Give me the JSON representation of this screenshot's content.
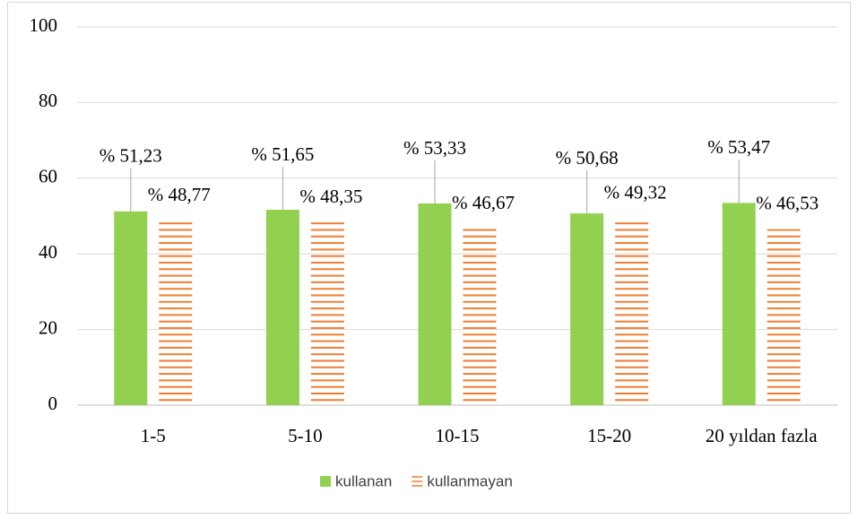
{
  "chart_data": {
    "type": "bar",
    "categories": [
      "1-5",
      "5-10",
      "10-15",
      "15-20",
      "20 yıldan fazla"
    ],
    "series": [
      {
        "name": "kullanan",
        "color": "#92d050",
        "fill": "solid",
        "values": [
          51.23,
          51.65,
          53.33,
          50.68,
          53.47
        ],
        "value_labels": [
          "% 51,23",
          "% 51,65",
          "% 53,33",
          "% 50,68",
          "% 53,47"
        ]
      },
      {
        "name": "kullanmayan",
        "color": "#ed7d31",
        "fill": "horizontal-lines",
        "values": [
          48.77,
          48.35,
          46.67,
          49.32,
          46.53
        ],
        "value_labels": [
          "% 48,77",
          "% 48,35",
          "% 46,67",
          "% 49,32",
          "% 46,53"
        ]
      }
    ],
    "ylim": [
      0,
      100
    ],
    "yticks": [
      0,
      20,
      40,
      60,
      80,
      100
    ],
    "grid": true,
    "legend": "bottom"
  }
}
